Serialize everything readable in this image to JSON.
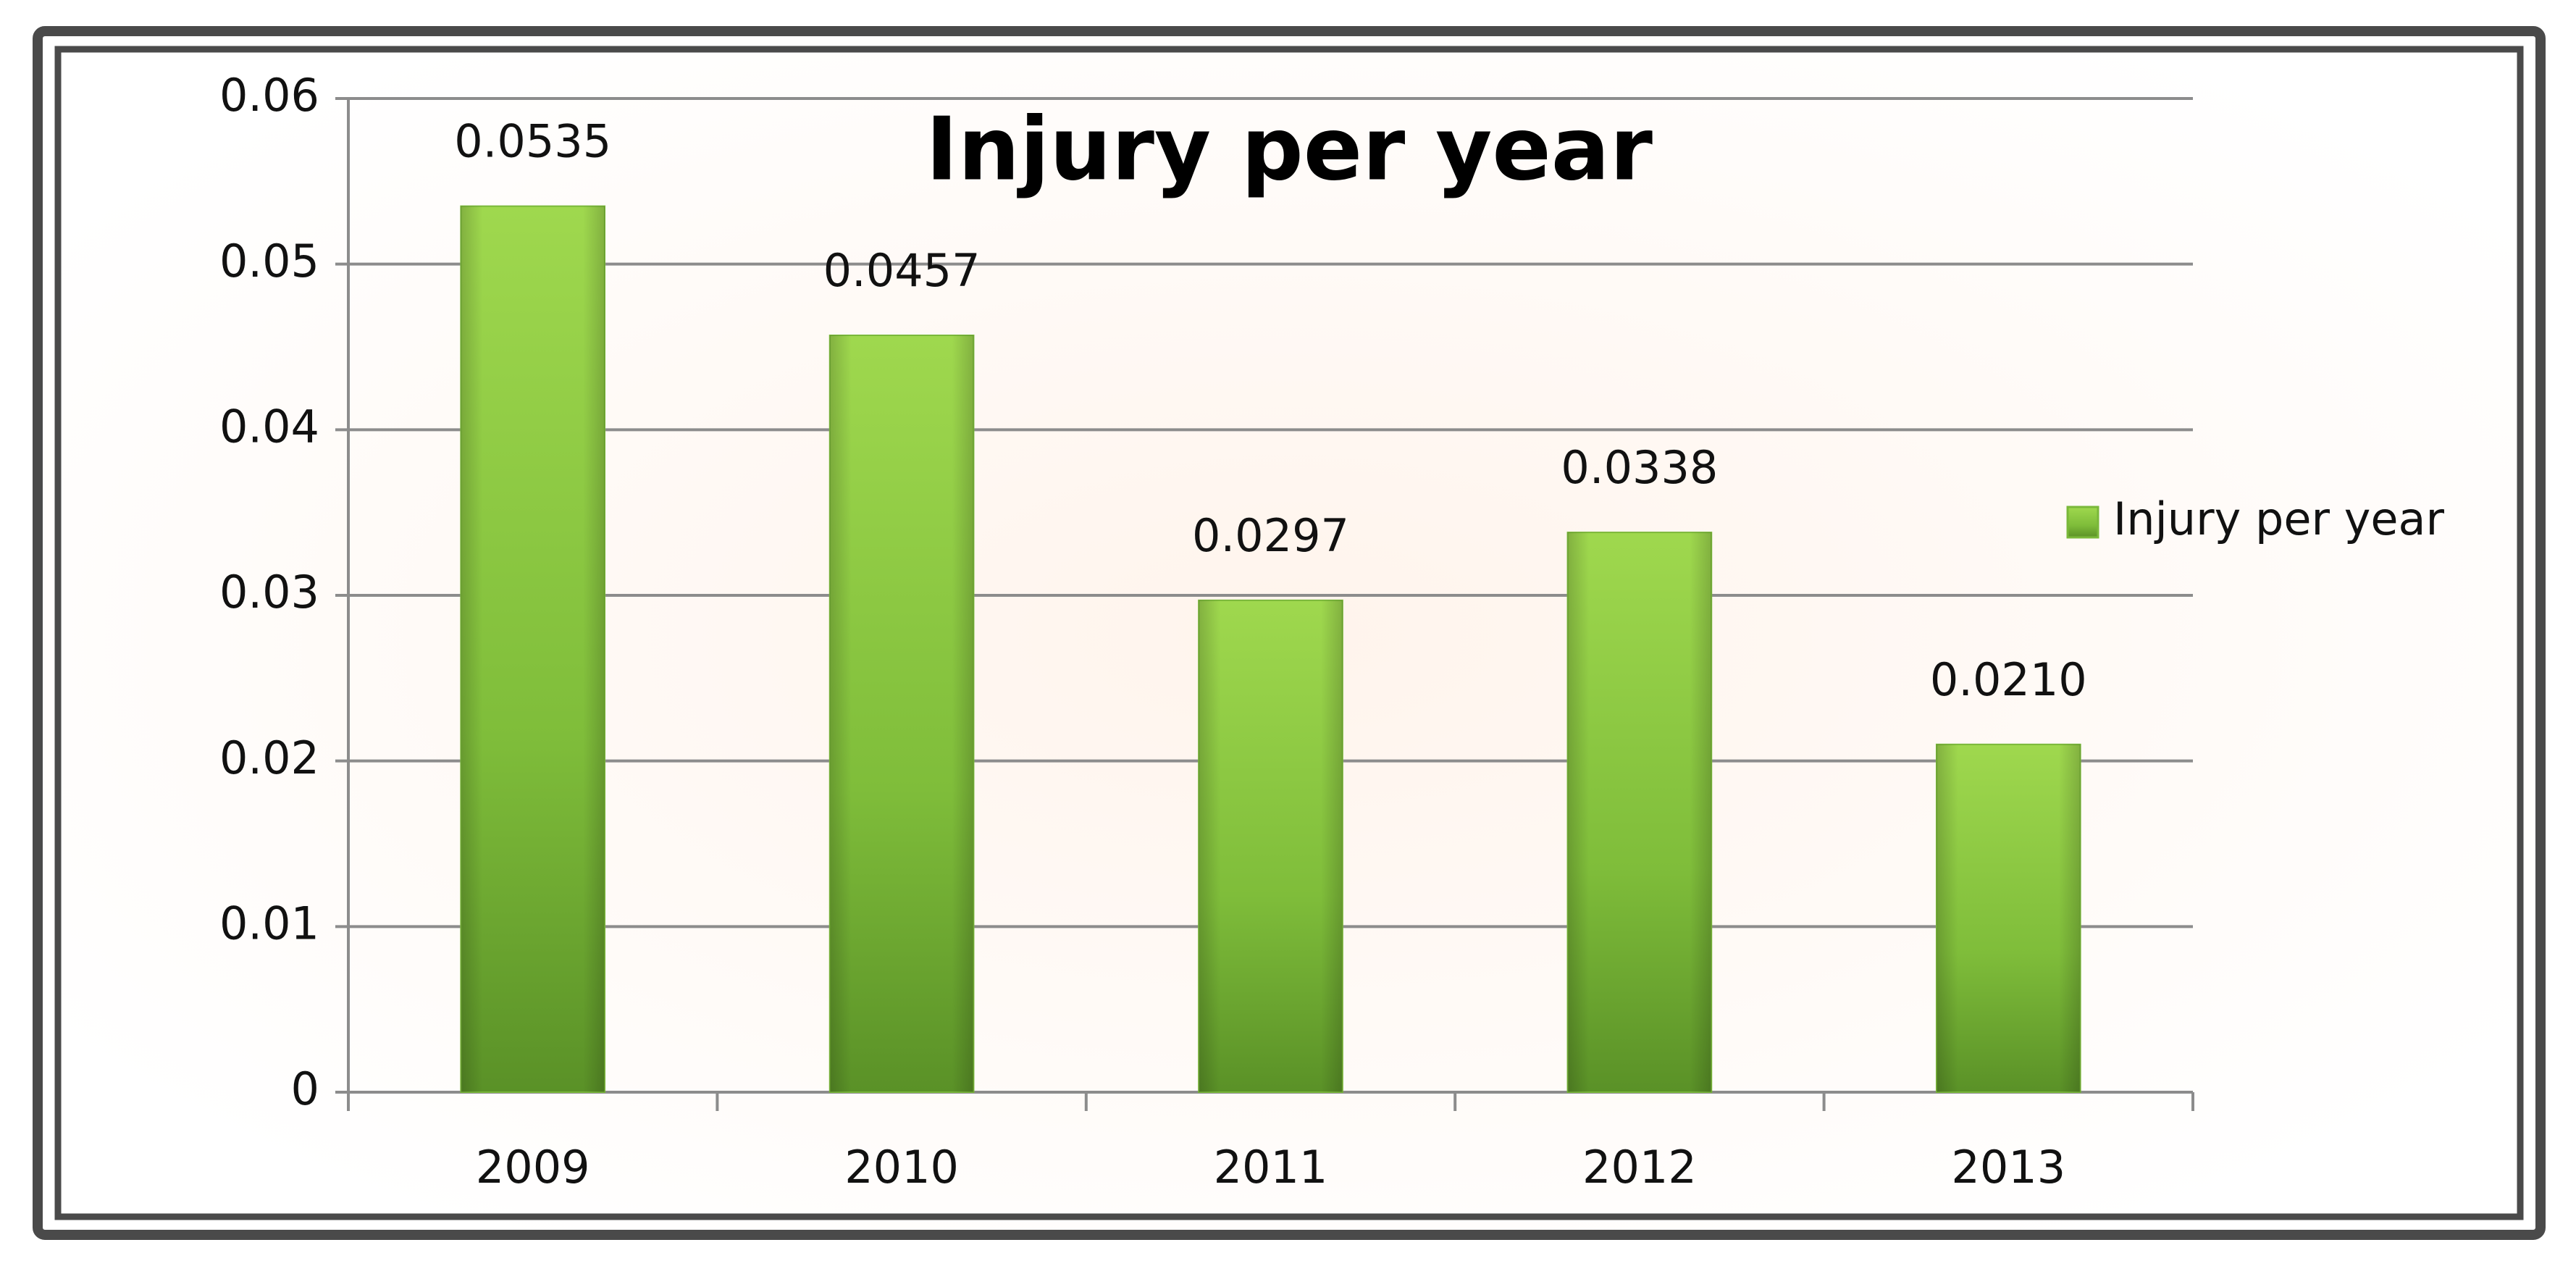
{
  "chart_data": {
    "type": "bar",
    "title": "Injury per year",
    "categories": [
      "2009",
      "2010",
      "2011",
      "2012",
      "2013"
    ],
    "series": [
      {
        "name": "Injury per year",
        "color": "#7ab83a",
        "values": [
          0.0535,
          0.0457,
          0.0297,
          0.0338,
          0.021
        ],
        "value_labels": [
          "0.0535",
          "0.0457",
          "0.0297",
          "0.0338",
          "0.0210"
        ]
      }
    ],
    "ylim": [
      0,
      0.06
    ],
    "yticks": [
      0,
      0.01,
      0.02,
      0.03,
      0.04,
      0.05,
      0.06
    ],
    "grid": true,
    "legend": "right"
  }
}
